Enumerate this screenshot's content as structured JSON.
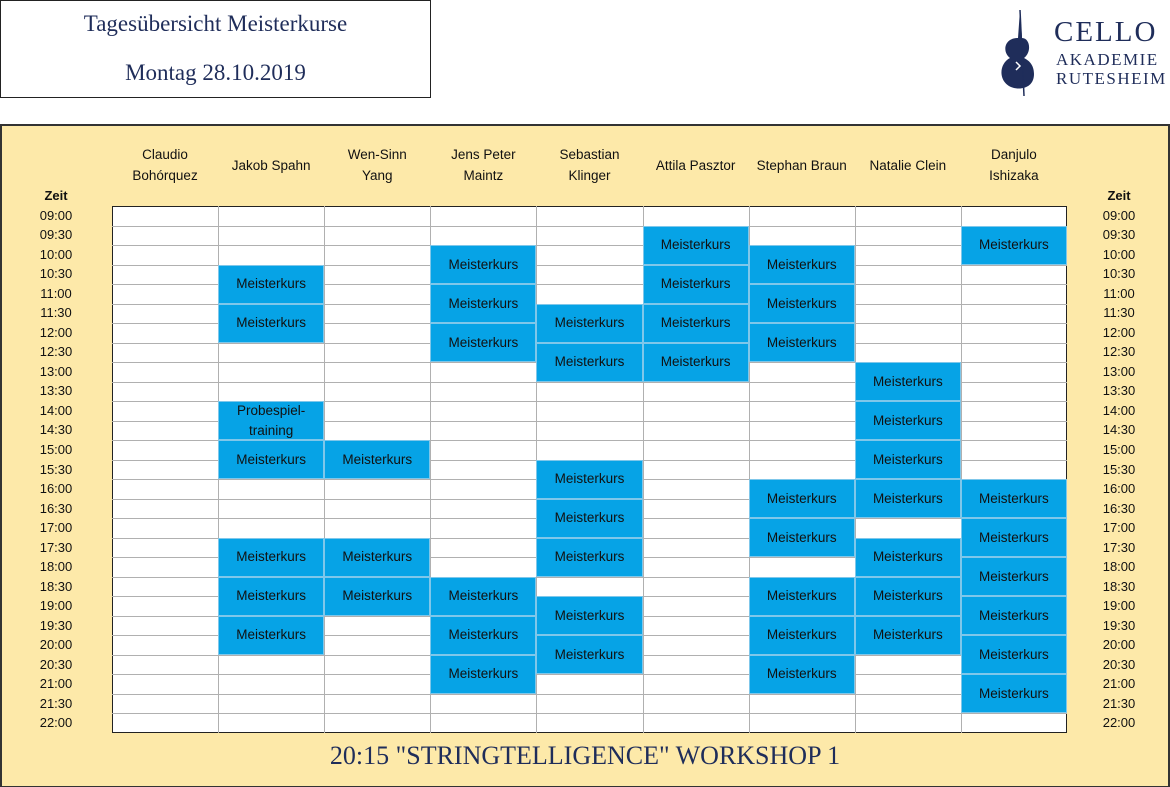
{
  "header": {
    "title": "Tagesübersicht Meisterkurse",
    "date": "Montag 28.10.2019"
  },
  "logo": {
    "line1": "CELLO",
    "line2": "AKADEMIE",
    "line3": "RUTESHEIM"
  },
  "time_label": "Zeit",
  "times": [
    "09:00",
    "09:30",
    "10:00",
    "10:30",
    "11:00",
    "11:30",
    "12:00",
    "12:30",
    "13:00",
    "13:30",
    "14:00",
    "14:30",
    "15:00",
    "15:30",
    "16:00",
    "16:30",
    "17:00",
    "17:30",
    "18:00",
    "18:30",
    "19:00",
    "19:30",
    "20:00",
    "20:30",
    "21:00",
    "21:30",
    "22:00"
  ],
  "columns": [
    {
      "name": "Claudio Bohórquez",
      "sessions": []
    },
    {
      "name": "Jakob Spahn",
      "sessions": [
        {
          "start": "10:30",
          "label": "Meisterkurs"
        },
        {
          "start": "11:30",
          "label": "Meisterkurs"
        },
        {
          "start": "14:00",
          "label": "Probespiel-training"
        },
        {
          "start": "15:00",
          "label": "Meisterkurs"
        },
        {
          "start": "17:30",
          "label": "Meisterkurs"
        },
        {
          "start": "18:30",
          "label": "Meisterkurs"
        },
        {
          "start": "19:30",
          "label": "Meisterkurs"
        }
      ]
    },
    {
      "name": "Wen-Sinn Yang",
      "sessions": [
        {
          "start": "15:00",
          "label": "Meisterkurs"
        },
        {
          "start": "17:30",
          "label": "Meisterkurs"
        },
        {
          "start": "18:30",
          "label": "Meisterkurs"
        }
      ]
    },
    {
      "name": "Jens Peter Maintz",
      "sessions": [
        {
          "start": "10:00",
          "label": "Meisterkurs"
        },
        {
          "start": "11:00",
          "label": "Meisterkurs"
        },
        {
          "start": "12:00",
          "label": "Meisterkurs"
        },
        {
          "start": "18:30",
          "label": "Meisterkurs"
        },
        {
          "start": "19:30",
          "label": "Meisterkurs"
        },
        {
          "start": "20:30",
          "label": "Meisterkurs"
        }
      ]
    },
    {
      "name": "Sebastian Klinger",
      "sessions": [
        {
          "start": "11:30",
          "label": "Meisterkurs"
        },
        {
          "start": "12:30",
          "label": "Meisterkurs"
        },
        {
          "start": "15:30",
          "label": "Meisterkurs"
        },
        {
          "start": "16:30",
          "label": "Meisterkurs"
        },
        {
          "start": "17:30",
          "label": "Meisterkurs"
        },
        {
          "start": "19:00",
          "label": "Meisterkurs"
        },
        {
          "start": "20:00",
          "label": "Meisterkurs"
        }
      ]
    },
    {
      "name": "Attila Pasztor",
      "sessions": [
        {
          "start": "09:30",
          "label": "Meisterkurs"
        },
        {
          "start": "10:30",
          "label": "Meisterkurs"
        },
        {
          "start": "11:30",
          "label": "Meisterkurs"
        },
        {
          "start": "12:30",
          "label": "Meisterkurs"
        }
      ]
    },
    {
      "name": "Stephan Braun",
      "sessions": [
        {
          "start": "10:00",
          "label": "Meisterkurs"
        },
        {
          "start": "11:00",
          "label": "Meisterkurs"
        },
        {
          "start": "12:00",
          "label": "Meisterkurs"
        },
        {
          "start": "16:00",
          "label": "Meisterkurs"
        },
        {
          "start": "17:00",
          "label": "Meisterkurs"
        },
        {
          "start": "18:30",
          "label": "Meisterkurs"
        },
        {
          "start": "19:30",
          "label": "Meisterkurs"
        },
        {
          "start": "20:30",
          "label": "Meisterkurs"
        }
      ]
    },
    {
      "name": "Natalie Clein",
      "sessions": [
        {
          "start": "13:00",
          "label": "Meisterkurs"
        },
        {
          "start": "14:00",
          "label": "Meisterkurs"
        },
        {
          "start": "15:00",
          "label": "Meisterkurs"
        },
        {
          "start": "16:00",
          "label": "Meisterkurs"
        },
        {
          "start": "17:30",
          "label": "Meisterkurs"
        },
        {
          "start": "18:30",
          "label": "Meisterkurs"
        },
        {
          "start": "19:30",
          "label": "Meisterkurs"
        }
      ]
    },
    {
      "name": "Danjulo Ishizaka",
      "sessions": [
        {
          "start": "09:30",
          "label": "Meisterkurs"
        },
        {
          "start": "16:00",
          "label": "Meisterkurs"
        },
        {
          "start": "17:00",
          "label": "Meisterkurs"
        },
        {
          "start": "18:00",
          "label": "Meisterkurs"
        },
        {
          "start": "19:00",
          "label": "Meisterkurs"
        },
        {
          "start": "20:00",
          "label": "Meisterkurs"
        },
        {
          "start": "21:00",
          "label": "Meisterkurs"
        }
      ]
    }
  ],
  "footer": "20:15 \"STRINGTELLIGENCE\" WORKSHOP 1"
}
